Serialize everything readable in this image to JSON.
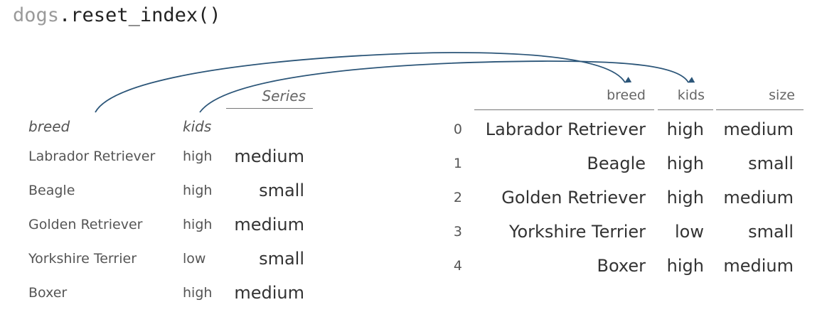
{
  "code": {
    "object": "dogs",
    "method": ".reset_index()"
  },
  "left": {
    "index_headers": [
      "breed",
      "kids"
    ],
    "series_label": "Series",
    "rows": [
      {
        "breed": "Labrador Retriever",
        "kids": "high",
        "value": "medium"
      },
      {
        "breed": "Beagle",
        "kids": "high",
        "value": "small"
      },
      {
        "breed": "Golden Retriever",
        "kids": "high",
        "value": "medium"
      },
      {
        "breed": "Yorkshire Terrier",
        "kids": "low",
        "value": "small"
      },
      {
        "breed": "Boxer",
        "kids": "high",
        "value": "medium"
      }
    ]
  },
  "right": {
    "columns": [
      "breed",
      "kids",
      "size"
    ],
    "rows": [
      {
        "index": "0",
        "breed": "Labrador Retriever",
        "kids": "high",
        "size": "medium"
      },
      {
        "index": "1",
        "breed": "Beagle",
        "kids": "high",
        "size": "small"
      },
      {
        "index": "2",
        "breed": "Golden Retriever",
        "kids": "high",
        "size": "medium"
      },
      {
        "index": "3",
        "breed": "Yorkshire Terrier",
        "kids": "low",
        "size": "small"
      },
      {
        "index": "4",
        "breed": "Boxer",
        "kids": "high",
        "size": "medium"
      }
    ]
  },
  "arrow_color": "#2b5578"
}
